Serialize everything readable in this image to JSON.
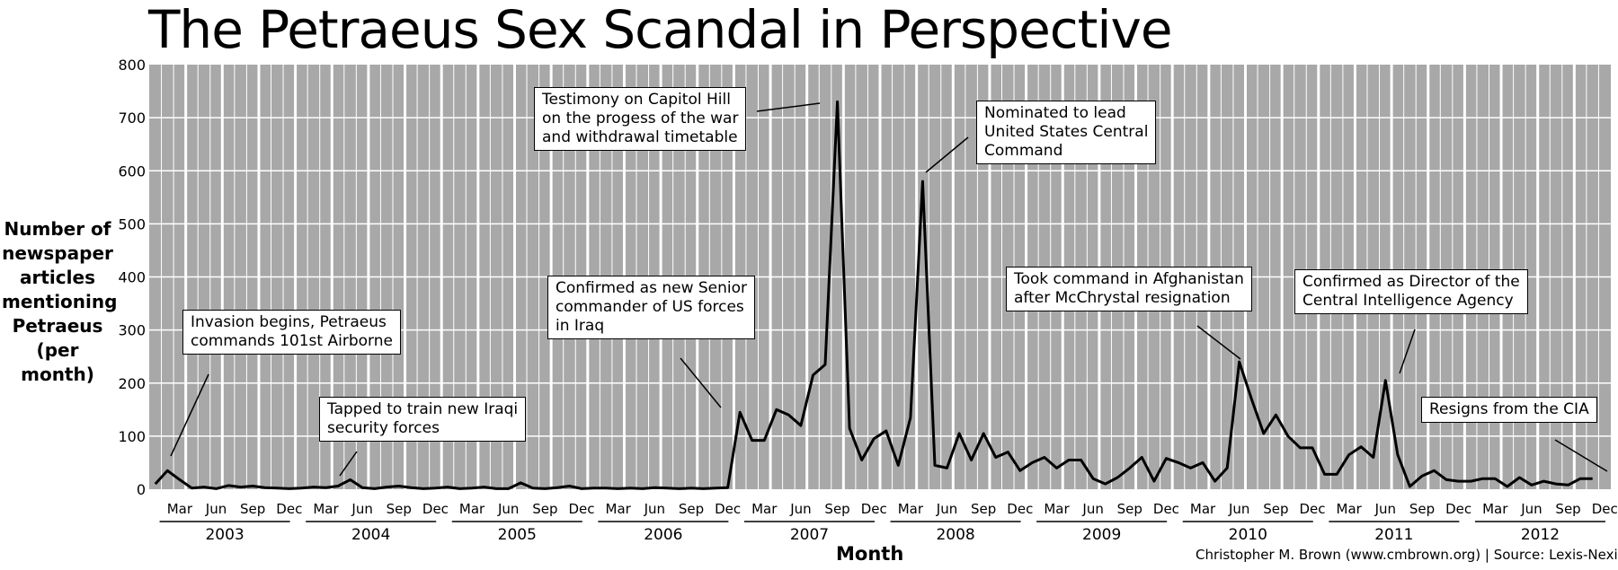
{
  "chart_data": {
    "type": "line",
    "title": "The Petraeus Sex Scandal in Perspective",
    "ylabel": "Number of newspaper articles mentioning Petraeus (per month)",
    "xlabel": "Month",
    "ylim": [
      0,
      800
    ],
    "yticks": [
      "0",
      "100",
      "200",
      "300",
      "400",
      "500",
      "600",
      "700",
      "800"
    ],
    "month_ticks": [
      "Mar",
      "Jun",
      "Sep",
      "Dec"
    ],
    "years": [
      "2003",
      "2004",
      "2005",
      "2006",
      "2007",
      "2008",
      "2009",
      "2010",
      "2011",
      "2012"
    ],
    "grid": true,
    "x_start": "2003-01",
    "series": [
      {
        "values": [
          10,
          35,
          18,
          2,
          4,
          1,
          7,
          4,
          6,
          3,
          2,
          1,
          2,
          4,
          3,
          6,
          18,
          3,
          1,
          4,
          6,
          3,
          1,
          2,
          4,
          1,
          2,
          4,
          1,
          1,
          12,
          2,
          1,
          3,
          6,
          1,
          2,
          2,
          1,
          2,
          1,
          3,
          2,
          1,
          2,
          1,
          2,
          3,
          145,
          92,
          92,
          150,
          140,
          120,
          215,
          235,
          730,
          115,
          55,
          95,
          110,
          45,
          135,
          580,
          45,
          40,
          105,
          55,
          105,
          60,
          70,
          35,
          50,
          60,
          40,
          55,
          55,
          20,
          10,
          22,
          40,
          60,
          15,
          58,
          50,
          40,
          50,
          15,
          40,
          240,
          170,
          105,
          140,
          100,
          78,
          78,
          28,
          28,
          65,
          80,
          60,
          205,
          65,
          5,
          25,
          35,
          18,
          15,
          15,
          20,
          20,
          5,
          22,
          8,
          15,
          10,
          8,
          20,
          20
        ]
      }
    ],
    "annotations": [
      {
        "lines": [
          "Invasion begins, Petraeus",
          "commands 101st Airborne"
        ],
        "month": 1
      },
      {
        "lines": [
          "Tapped to train new Iraqi",
          "security forces"
        ],
        "month": 16
      },
      {
        "lines": [
          "Confirmed as new Senior",
          "commander of US forces",
          "in Iraq"
        ],
        "month": 48
      },
      {
        "lines": [
          "Testimony on Capitol Hill",
          "on the progess of the war",
          "and withdrawal timetable"
        ],
        "month": 56
      },
      {
        "lines": [
          "Nominated to lead",
          "United States Central",
          "Command"
        ],
        "month": 63
      },
      {
        "lines": [
          "Took command in Afghanistan",
          "after McChrystal resignation"
        ],
        "month": 89
      },
      {
        "lines": [
          "Confirmed as Director of the",
          "Central Intelligence Agency"
        ],
        "month": 101
      },
      {
        "lines": [
          "Resigns from the CIA"
        ],
        "month": 118
      }
    ]
  },
  "credit": "Christopher M. Brown (www.cmbrown.org) | Source: Lexis-Nexis"
}
